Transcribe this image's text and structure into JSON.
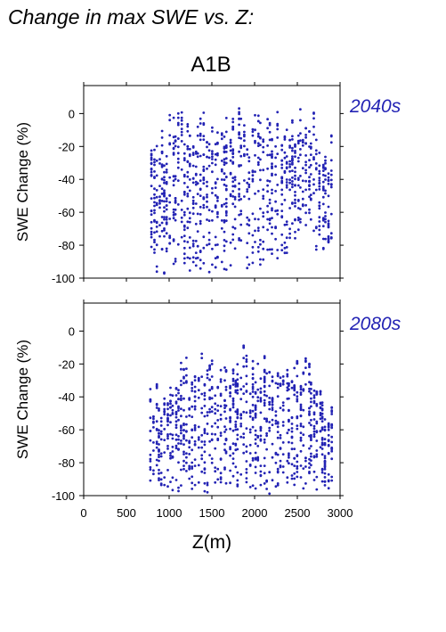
{
  "figure_title": "Change in max SWE vs. Z:",
  "scenario": "A1B",
  "accent_color": "#2323b4",
  "chart_data": [
    {
      "type": "scatter",
      "period": "2040s",
      "xlabel": "",
      "ylabel": "SWE Change (%)",
      "xlim": [
        0,
        3000
      ],
      "ylim": [
        -100,
        17
      ],
      "xticks": [
        0,
        500,
        1000,
        1500,
        2000,
        2500,
        3000
      ],
      "yticks": [
        0,
        -20,
        -40,
        -60,
        -80,
        -100
      ],
      "show_xtick_labels": false,
      "grid": false,
      "color": "#2323b4",
      "elevation_range": [
        780,
        2920
      ],
      "clusters": [
        {
          "x": [
            780,
            1000
          ],
          "y_top": -10,
          "y_bottom": -100
        },
        {
          "x": [
            1000,
            1300
          ],
          "y_top": 5,
          "y_bottom": -100
        },
        {
          "x": [
            1300,
            1600
          ],
          "y_top": 5,
          "y_bottom": -100
        },
        {
          "x": [
            1600,
            2000
          ],
          "y_top": 7,
          "y_bottom": -100
        },
        {
          "x": [
            2000,
            2400
          ],
          "y_top": 8,
          "y_bottom": -95
        },
        {
          "x": [
            2400,
            2720
          ],
          "y_top": 5,
          "y_bottom": -80
        },
        {
          "x": [
            2720,
            2920
          ],
          "y_top": -10,
          "y_bottom": -85
        }
      ]
    },
    {
      "type": "scatter",
      "period": "2080s",
      "xlabel": "Z(m)",
      "ylabel": "SWE Change (%)",
      "xlim": [
        0,
        3000
      ],
      "ylim": [
        -100,
        17
      ],
      "xticks": [
        0,
        500,
        1000,
        1500,
        2000,
        2500,
        3000
      ],
      "yticks": [
        0,
        -20,
        -40,
        -60,
        -80,
        -100
      ],
      "show_xtick_labels": true,
      "grid": false,
      "color": "#2323b4",
      "elevation_range": [
        780,
        2920
      ],
      "clusters": [
        {
          "x": [
            780,
            1000
          ],
          "y_top": -30,
          "y_bottom": -100
        },
        {
          "x": [
            1000,
            1300
          ],
          "y_top": -15,
          "y_bottom": -100
        },
        {
          "x": [
            1300,
            1600
          ],
          "y_top": -10,
          "y_bottom": -100
        },
        {
          "x": [
            1600,
            2000
          ],
          "y_top": -6,
          "y_bottom": -100
        },
        {
          "x": [
            2000,
            2400
          ],
          "y_top": -6,
          "y_bottom": -100
        },
        {
          "x": [
            2400,
            2720
          ],
          "y_top": -10,
          "y_bottom": -100
        },
        {
          "x": [
            2720,
            2920
          ],
          "y_top": -30,
          "y_bottom": -100
        }
      ]
    }
  ]
}
